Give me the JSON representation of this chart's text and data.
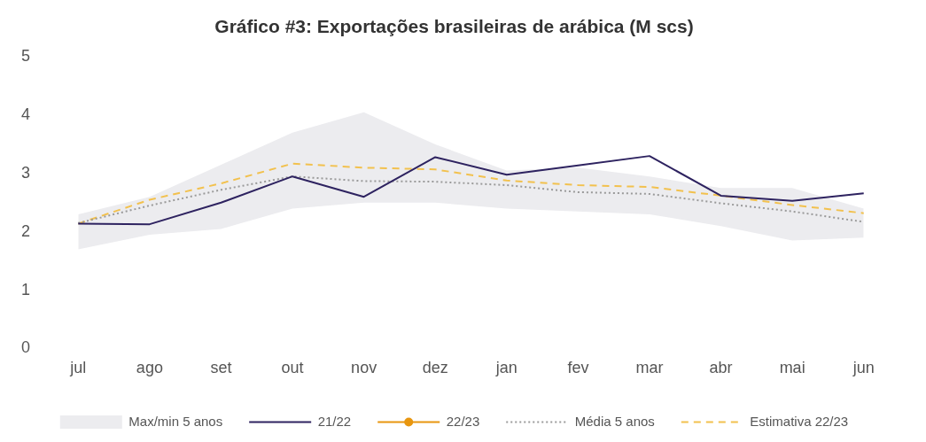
{
  "chart_data": {
    "type": "line",
    "title": "Gráfico #3: Exportações brasileiras de arábica (M scs)",
    "categories": [
      "jul",
      "ago",
      "set",
      "out",
      "nov",
      "dez",
      "jan",
      "fev",
      "mar",
      "abr",
      "mai",
      "jun"
    ],
    "ylim": [
      0,
      5
    ],
    "yticks": [
      0,
      1,
      2,
      3,
      4,
      5
    ],
    "grid": false,
    "legend": "bottom",
    "marker": "none",
    "series": [
      {
        "name": "Max/min 5 anos",
        "type": "area",
        "color": "#ececef",
        "values": [
          null,
          null,
          null,
          null,
          null,
          null,
          null,
          null,
          null,
          null,
          null,
          null
        ],
        "lower": [
          1.7,
          1.95,
          2.05,
          2.4,
          2.5,
          2.5,
          2.4,
          2.35,
          2.3,
          2.1,
          1.85,
          1.9
        ],
        "upper": [
          2.3,
          2.6,
          3.15,
          3.7,
          4.05,
          3.5,
          3.05,
          3.1,
          2.95,
          2.75,
          2.75,
          2.4
        ]
      },
      {
        "name": "21/22",
        "type": "line",
        "color": "#2e2360",
        "line_style": "solid",
        "values": [
          2.14,
          2.13,
          2.5,
          2.95,
          2.6,
          3.28,
          2.98,
          3.14,
          3.3,
          2.62,
          2.53,
          2.66
        ]
      },
      {
        "name": "22/23",
        "type": "line",
        "color": "#e8960f",
        "line_style": "solid",
        "marker": "circle",
        "values": [
          null,
          null,
          null,
          null,
          null,
          null,
          null,
          null,
          null,
          null,
          null,
          null
        ]
      },
      {
        "name": "Média 5 anos",
        "type": "line",
        "color": "#9a9a9a",
        "line_style": "dotted",
        "values": [
          2.15,
          2.45,
          2.72,
          2.95,
          2.87,
          2.86,
          2.8,
          2.68,
          2.65,
          2.49,
          2.35,
          2.17
        ]
      },
      {
        "name": "Estimativa 22/23",
        "type": "line",
        "color": "#f2c14e",
        "line_style": "dashed",
        "values": [
          2.14,
          2.55,
          2.83,
          3.17,
          3.1,
          3.07,
          2.88,
          2.8,
          2.77,
          2.62,
          2.46,
          2.32
        ]
      }
    ]
  }
}
